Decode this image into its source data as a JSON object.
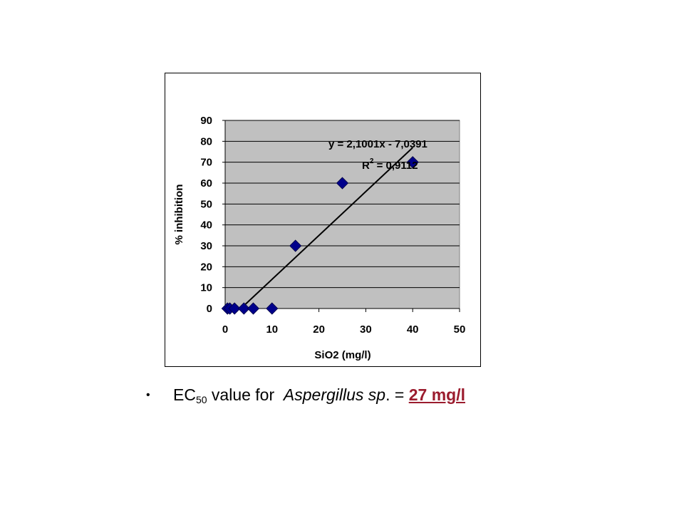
{
  "chart_data": {
    "type": "scatter",
    "xlabel": "SiO2 (mg/l)",
    "ylabel": "% inhibition",
    "xlim": [
      0,
      50
    ],
    "ylim": [
      0,
      90
    ],
    "x_ticks": [
      "0",
      "10",
      "20",
      "30",
      "40",
      "50"
    ],
    "y_ticks": [
      "0",
      "10",
      "20",
      "30",
      "40",
      "50",
      "60",
      "70",
      "80",
      "90"
    ],
    "grid": "horizontal",
    "points": [
      {
        "x": 0.5,
        "y": 0
      },
      {
        "x": 1,
        "y": 0
      },
      {
        "x": 2,
        "y": 0
      },
      {
        "x": 4,
        "y": 0
      },
      {
        "x": 6,
        "y": 0
      },
      {
        "x": 10,
        "y": 0
      },
      {
        "x": 15,
        "y": 30
      },
      {
        "x": 25,
        "y": 60
      },
      {
        "x": 40,
        "y": 70
      }
    ],
    "trendline": {
      "slope": 2.1001,
      "intercept": -7.0391,
      "x_start": 4,
      "x_end": 40
    },
    "equation_label": "y = 2,1001x - 7,0391",
    "r2_label_prefix": "R",
    "r2_label_sup": "2",
    "r2_label_value": " = 0,9112",
    "colors": {
      "plot_bg": "#c0c0c0",
      "marker": "#00008b",
      "grid": "#000000",
      "result": "#9b1c2e"
    }
  },
  "caption": {
    "bullet": "•",
    "prefix": "EC",
    "subscript": "50",
    "middle": " value for  ",
    "organism": "Aspergillus sp",
    "after_organism": ". = ",
    "result": "27 mg/l"
  }
}
